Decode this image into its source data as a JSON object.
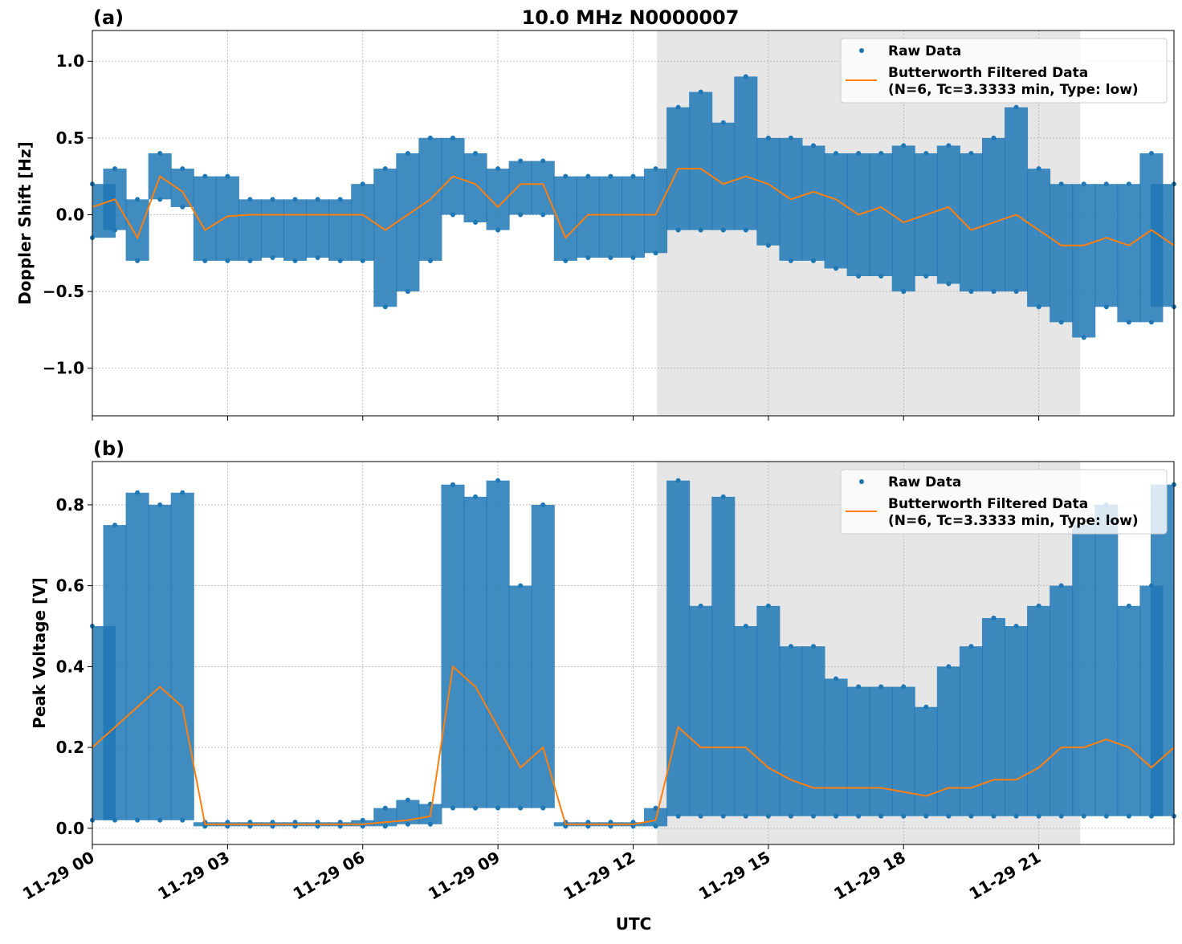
{
  "title": "10.0 MHz N0000007",
  "chart_data": [
    {
      "type": "scatter+line",
      "panel_label": "(a)",
      "ylabel": "Doppler Shift [Hz]",
      "xlabel": "",
      "ylim": [
        -1.31,
        1.2
      ],
      "yticks": [
        -1.0,
        -0.5,
        0.0,
        0.5,
        1.0
      ],
      "ytick_labels": [
        "−1.0",
        "−0.5",
        "0.0",
        "0.5",
        "1.0"
      ],
      "grid": true,
      "legend_position": "top-right",
      "x_hours": [
        0,
        0.5,
        1,
        1.5,
        2,
        2.5,
        3,
        3.5,
        4,
        4.5,
        5,
        5.5,
        6,
        6.5,
        7,
        7.5,
        8,
        8.5,
        9,
        9.5,
        10,
        10.5,
        11,
        11.5,
        12,
        12.5,
        13,
        13.5,
        14,
        14.5,
        15,
        15.5,
        16,
        16.5,
        17,
        17.5,
        18,
        18.5,
        19,
        19.5,
        20,
        20.5,
        21,
        21.5,
        22,
        22.5,
        23,
        23.5,
        24
      ],
      "series": [
        {
          "name": "Raw Data",
          "color": "#1f77b4",
          "low": [
            -0.15,
            -0.1,
            -0.3,
            0.1,
            0.05,
            -0.3,
            -0.3,
            -0.3,
            -0.28,
            -0.3,
            -0.28,
            -0.3,
            -0.3,
            -0.6,
            -0.5,
            -0.3,
            0.0,
            -0.05,
            -0.1,
            0.0,
            0.0,
            -0.3,
            -0.28,
            -0.28,
            -0.28,
            -0.25,
            -0.1,
            -0.1,
            -0.1,
            -0.1,
            -0.2,
            -0.3,
            -0.3,
            -0.35,
            -0.4,
            -0.4,
            -0.5,
            -0.4,
            -0.45,
            -0.5,
            -0.5,
            -0.5,
            -0.6,
            -0.7,
            -0.8,
            -0.6,
            -0.7,
            -0.7,
            -0.6
          ],
          "high": [
            0.2,
            0.3,
            0.1,
            0.4,
            0.3,
            0.25,
            0.25,
            0.1,
            0.1,
            0.1,
            0.1,
            0.1,
            0.2,
            0.3,
            0.4,
            0.5,
            0.5,
            0.4,
            0.3,
            0.35,
            0.35,
            0.25,
            0.25,
            0.25,
            0.25,
            0.3,
            0.7,
            0.8,
            0.6,
            0.9,
            0.5,
            0.5,
            0.45,
            0.4,
            0.4,
            0.4,
            0.45,
            0.4,
            0.45,
            0.4,
            0.5,
            0.7,
            0.3,
            0.2,
            0.2,
            0.2,
            0.2,
            0.4,
            0.2
          ]
        },
        {
          "name": "Butterworth Filtered Data\n(N=6, Tc=3.3333 min, Type: low)",
          "color": "#ff7f0e",
          "values": [
            0.05,
            0.1,
            -0.15,
            0.25,
            0.15,
            -0.1,
            -0.01,
            0,
            0,
            0,
            0,
            0,
            0,
            -0.1,
            0,
            0.1,
            0.25,
            0.2,
            0.05,
            0.2,
            0.2,
            -0.15,
            0,
            0,
            0,
            0,
            0.3,
            0.3,
            0.2,
            0.25,
            0.2,
            0.1,
            0.15,
            0.1,
            0,
            0.05,
            -0.05,
            0,
            0.05,
            -0.1,
            -0.05,
            0,
            -0.1,
            -0.2,
            -0.2,
            -0.15,
            -0.2,
            -0.1,
            -0.2
          ]
        }
      ],
      "legend": [
        "Raw Data",
        "Butterworth Filtered Data",
        "(N=6, Tc=3.3333 min, Type: low)"
      ],
      "shaded_region_hours": [
        12.53,
        21.92
      ]
    },
    {
      "type": "scatter+line",
      "panel_label": "(b)",
      "ylabel": "Peak Voltage [V]",
      "xlabel": "UTC",
      "ylim": [
        -0.04,
        0.907
      ],
      "yticks": [
        0.0,
        0.2,
        0.4,
        0.6,
        0.8
      ],
      "ytick_labels": [
        "0.0",
        "0.2",
        "0.4",
        "0.6",
        "0.8"
      ],
      "xtick_labels": [
        "11-29 00",
        "11-29 03",
        "11-29 06",
        "11-29 09",
        "11-29 12",
        "11-29 15",
        "11-29 18",
        "11-29 21"
      ],
      "grid": true,
      "legend_position": "top-right",
      "x_hours": [
        0,
        0.5,
        1,
        1.5,
        2,
        2.5,
        3,
        3.5,
        4,
        4.5,
        5,
        5.5,
        6,
        6.5,
        7,
        7.5,
        8,
        8.5,
        9,
        9.5,
        10,
        10.5,
        11,
        11.5,
        12,
        12.5,
        13,
        13.5,
        14,
        14.5,
        15,
        15.5,
        16,
        16.5,
        17,
        17.5,
        18,
        18.5,
        19,
        19.5,
        20,
        20.5,
        21,
        21.5,
        22,
        22.5,
        23,
        23.5,
        24
      ],
      "series": [
        {
          "name": "Raw Data",
          "color": "#1f77b4",
          "low": [
            0.02,
            0.02,
            0.02,
            0.02,
            0.02,
            0.005,
            0.005,
            0.005,
            0.005,
            0.005,
            0.005,
            0.005,
            0.005,
            0.005,
            0.01,
            0.01,
            0.05,
            0.05,
            0.05,
            0.05,
            0.05,
            0.005,
            0.005,
            0.005,
            0.005,
            0.005,
            0.03,
            0.03,
            0.03,
            0.03,
            0.03,
            0.03,
            0.03,
            0.03,
            0.03,
            0.03,
            0.03,
            0.03,
            0.03,
            0.03,
            0.03,
            0.03,
            0.03,
            0.03,
            0.03,
            0.03,
            0.03,
            0.03,
            0.03
          ],
          "high": [
            0.5,
            0.75,
            0.83,
            0.8,
            0.83,
            0.015,
            0.015,
            0.015,
            0.015,
            0.015,
            0.015,
            0.015,
            0.02,
            0.05,
            0.07,
            0.06,
            0.85,
            0.82,
            0.86,
            0.6,
            0.8,
            0.015,
            0.015,
            0.015,
            0.015,
            0.05,
            0.86,
            0.55,
            0.82,
            0.5,
            0.55,
            0.45,
            0.45,
            0.37,
            0.35,
            0.35,
            0.35,
            0.3,
            0.4,
            0.45,
            0.52,
            0.5,
            0.55,
            0.6,
            0.75,
            0.8,
            0.55,
            0.6,
            0.85
          ]
        },
        {
          "name": "Butterworth Filtered Data\n(N=6, Tc=3.3333 min, Type: low)",
          "color": "#ff7f0e",
          "values": [
            0.2,
            0.25,
            0.3,
            0.35,
            0.3,
            0.01,
            0.01,
            0.01,
            0.01,
            0.01,
            0.01,
            0.01,
            0.01,
            0.015,
            0.02,
            0.03,
            0.4,
            0.35,
            0.25,
            0.15,
            0.2,
            0.01,
            0.01,
            0.01,
            0.01,
            0.02,
            0.25,
            0.2,
            0.2,
            0.2,
            0.15,
            0.12,
            0.1,
            0.1,
            0.1,
            0.1,
            0.09,
            0.08,
            0.1,
            0.1,
            0.12,
            0.12,
            0.15,
            0.2,
            0.2,
            0.22,
            0.2,
            0.15,
            0.2
          ]
        }
      ],
      "legend": [
        "Raw Data",
        "Butterworth Filtered Data",
        "(N=6, Tc=3.3333 min, Type: low)"
      ],
      "shaded_region_hours": [
        12.53,
        21.92
      ]
    }
  ]
}
